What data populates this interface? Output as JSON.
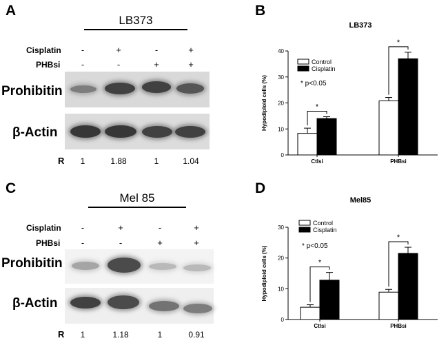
{
  "panel_a": {
    "letter": "A",
    "cell_line": "LB373",
    "row_labels": [
      "Cisplatin",
      "PHBsi"
    ],
    "cisplatin_signs": [
      "-",
      "+",
      "-",
      "+"
    ],
    "phbsi_signs": [
      "-",
      "-",
      "+",
      "+"
    ],
    "proteins": [
      "Prohibitin",
      "β-Actin"
    ],
    "r_label": "R",
    "r_values": [
      "1",
      "1.88",
      "1",
      "1.04"
    ],
    "band_intensity": {
      "prohibitin": [
        0.55,
        0.85,
        0.85,
        0.75
      ],
      "actin": [
        0.9,
        0.9,
        0.85,
        0.85
      ]
    }
  },
  "panel_c": {
    "letter": "C",
    "cell_line": "Mel 85",
    "row_labels": [
      "Cisplatin",
      "PHBsi"
    ],
    "cisplatin_signs": [
      "-",
      "+",
      "-",
      "+"
    ],
    "phbsi_signs": [
      "-",
      "-",
      "+",
      "+"
    ],
    "proteins": [
      "Prohibitin",
      "β-Actin"
    ],
    "r_label": "R",
    "r_values": [
      "1",
      "1.18",
      "1",
      "0.91"
    ],
    "band_intensity": {
      "prohibitin": [
        0.35,
        0.8,
        0.25,
        0.25
      ],
      "actin": [
        0.85,
        0.8,
        0.6,
        0.55
      ]
    }
  },
  "chart_data": [
    {
      "type": "bar",
      "panel": "B",
      "title": "LB373",
      "ylabel": "Hypodiploid cells (%)",
      "xlabel": "",
      "categories": [
        "Ctlsi",
        "PHBsi"
      ],
      "ylim": [
        0,
        40
      ],
      "yticks": [
        0,
        10,
        20,
        30,
        40
      ],
      "series": [
        {
          "name": "Control",
          "values": [
            8.3,
            20.8
          ],
          "errors": [
            2.0,
            1.3
          ],
          "color": "#ffffff"
        },
        {
          "name": "Cisplatin",
          "values": [
            14.0,
            37.0
          ],
          "errors": [
            0.7,
            2.5
          ],
          "color": "#000000"
        }
      ],
      "significance": [
        "*",
        "*"
      ],
      "annotation": "* p<0.05",
      "legend": "top-left"
    },
    {
      "type": "bar",
      "panel": "D",
      "title": "Mel85",
      "ylabel": "Hypodiploid cells (%)",
      "xlabel": "",
      "categories": [
        "Ctlsi",
        "PHBsi"
      ],
      "ylim": [
        0,
        30
      ],
      "yticks": [
        0,
        10,
        20,
        30
      ],
      "series": [
        {
          "name": "Control",
          "values": [
            4.0,
            8.9
          ],
          "errors": [
            0.8,
            0.9
          ],
          "color": "#ffffff"
        },
        {
          "name": "Cisplatin",
          "values": [
            12.8,
            21.5
          ],
          "errors": [
            2.5,
            2.0
          ],
          "color": "#000000"
        }
      ],
      "significance": [
        "*",
        "*"
      ],
      "annotation": "* p<0.05",
      "legend": "top-left"
    }
  ]
}
